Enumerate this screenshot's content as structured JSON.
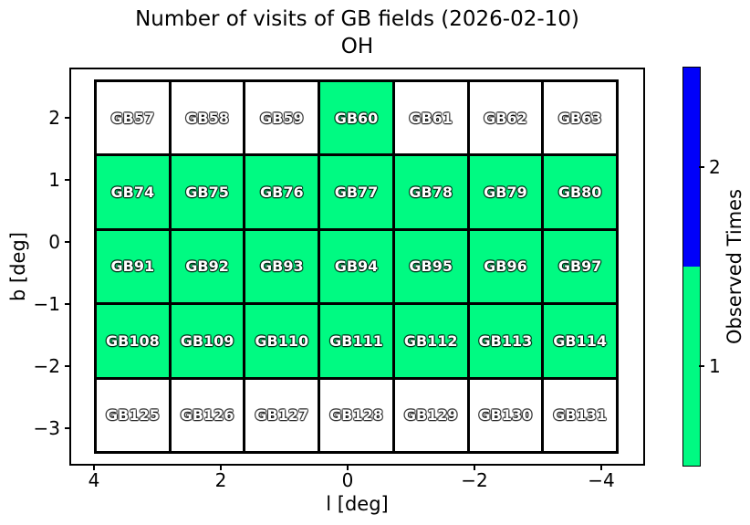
{
  "chart_data": {
    "type": "heatmap",
    "title": "Number of visits of GB fields (2026-02-10)",
    "subtitle": "OH",
    "xlabel": "l [deg]",
    "ylabel": "b [deg]",
    "x_ticks": [
      "4",
      "2",
      "0",
      "−2",
      "−4"
    ],
    "y_ticks": [
      "2",
      "1",
      "0",
      "−1",
      "−2",
      "−3"
    ],
    "x_axis_reversed": true,
    "x_range": [
      4.4,
      -4.7
    ],
    "y_range": [
      -3.6,
      2.8
    ],
    "grid_on": false,
    "value_colors": {
      "0": "#ffffff",
      "1": "#00fa82",
      "2": "#0000fa"
    },
    "line_color": "#000000",
    "colorbar": {
      "label": "Observed Times",
      "segments": [
        {
          "tick": "2",
          "value": 2,
          "color": "#0000fa"
        },
        {
          "tick": "1",
          "value": 1,
          "color": "#00fa82"
        }
      ]
    },
    "grid": [
      [
        {
          "label": "GB57",
          "visits": 0
        },
        {
          "label": "GB58",
          "visits": 0
        },
        {
          "label": "GB59",
          "visits": 0
        },
        {
          "label": "GB60",
          "visits": 1
        },
        {
          "label": "GB61",
          "visits": 0
        },
        {
          "label": "GB62",
          "visits": 0
        },
        {
          "label": "GB63",
          "visits": 0
        }
      ],
      [
        {
          "label": "GB74",
          "visits": 1
        },
        {
          "label": "GB75",
          "visits": 1
        },
        {
          "label": "GB76",
          "visits": 1
        },
        {
          "label": "GB77",
          "visits": 1
        },
        {
          "label": "GB78",
          "visits": 1
        },
        {
          "label": "GB79",
          "visits": 1
        },
        {
          "label": "GB80",
          "visits": 1
        }
      ],
      [
        {
          "label": "GB91",
          "visits": 1
        },
        {
          "label": "GB92",
          "visits": 1
        },
        {
          "label": "GB93",
          "visits": 1
        },
        {
          "label": "GB94",
          "visits": 1
        },
        {
          "label": "GB95",
          "visits": 1
        },
        {
          "label": "GB96",
          "visits": 1
        },
        {
          "label": "GB97",
          "visits": 1
        }
      ],
      [
        {
          "label": "GB108",
          "visits": 1
        },
        {
          "label": "GB109",
          "visits": 1
        },
        {
          "label": "GB110",
          "visits": 1
        },
        {
          "label": "GB111",
          "visits": 1
        },
        {
          "label": "GB112",
          "visits": 1
        },
        {
          "label": "GB113",
          "visits": 1
        },
        {
          "label": "GB114",
          "visits": 1
        }
      ],
      [
        {
          "label": "GB125",
          "visits": 0
        },
        {
          "label": "GB126",
          "visits": 0
        },
        {
          "label": "GB127",
          "visits": 0
        },
        {
          "label": "GB128",
          "visits": 0
        },
        {
          "label": "GB129",
          "visits": 0
        },
        {
          "label": "GB130",
          "visits": 0
        },
        {
          "label": "GB131",
          "visits": 0
        }
      ]
    ]
  }
}
